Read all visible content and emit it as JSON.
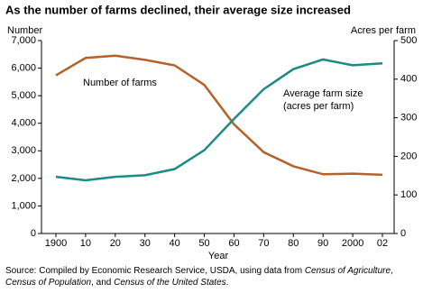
{
  "chart_data": {
    "type": "line",
    "title": "As the number of farms declined, their average size increased",
    "ylabel": "Number",
    "y2label": "Acres per farm",
    "xlabel": "Year",
    "categories": [
      "1900",
      "10",
      "20",
      "30",
      "40",
      "50",
      "60",
      "70",
      "80",
      "90",
      "2000",
      "02"
    ],
    "series": [
      {
        "name": "Number of farms",
        "color": "#b5612a",
        "values": [
          5740,
          6370,
          6450,
          6300,
          6100,
          5390,
          3960,
          2950,
          2440,
          2150,
          2170,
          2130
        ]
      },
      {
        "name": "Average farm size",
        "label2": "(acres per farm)",
        "color": "#1d8a84",
        "axis": "y2",
        "values": [
          147,
          138,
          147,
          151,
          167,
          216,
          297,
          374,
          426,
          451,
          436,
          441
        ]
      }
    ],
    "ylim": [
      0,
      7000
    ],
    "yticks": [
      0,
      {
        "value": 1000,
        "label": "1,000"
      },
      {
        "value": 2000,
        "label": "2,000"
      },
      {
        "value": 3000,
        "label": "3,000"
      },
      {
        "value": 4000,
        "label": "4,000"
      },
      {
        "value": 5000,
        "label": "5,000"
      },
      {
        "value": 6000,
        "label": "6,000"
      },
      {
        "value": 7000,
        "label": "7,000"
      }
    ],
    "y2lim": [
      0,
      500
    ],
    "y2ticks": [
      0,
      100,
      200,
      300,
      400,
      500
    ],
    "source": [
      "Source: Compiled by Economic Research Service, USDA, using data from ",
      "Census of Agriculture",
      ", ",
      "Census of Population",
      ", and ",
      "Census of the United States",
      "."
    ]
  }
}
